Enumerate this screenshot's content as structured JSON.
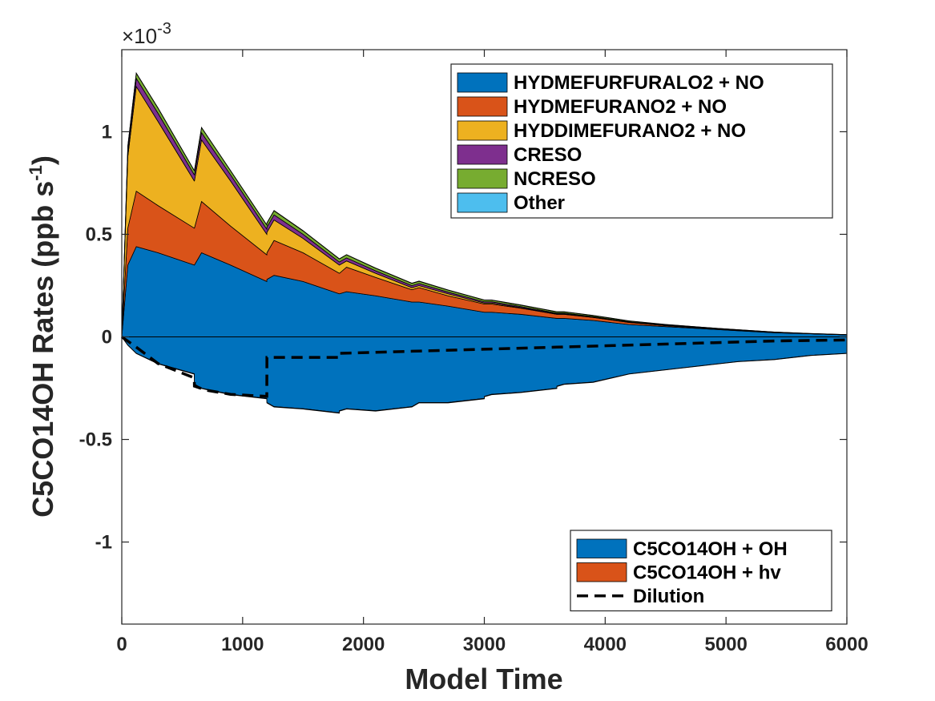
{
  "chart_data": {
    "type": "area",
    "title": "",
    "xlabel": "Model Time",
    "ylabel": "C5CO14OH Rates (ppb s",
    "ylabel_sup": "-1",
    "ylabel_close": ")",
    "multiplier": {
      "times": "×10",
      "exponent": "-3"
    },
    "xlim": [
      0,
      6000
    ],
    "ylim": [
      -1.4,
      1.4
    ],
    "scale": 0.001,
    "x_ticks": [
      0,
      1000,
      2000,
      3000,
      4000,
      5000,
      6000
    ],
    "x_tick_labels": [
      "0",
      "1000",
      "2000",
      "3000",
      "4000",
      "5000",
      "6000"
    ],
    "y_ticks": [
      -1,
      -0.5,
      0,
      0.5,
      1
    ],
    "y_tick_labels": [
      "-1",
      "-0.5",
      "0",
      "0.5",
      "1"
    ],
    "grid": false,
    "legend_placement": [
      "top-right",
      "bottom-right"
    ],
    "x": [
      0,
      50,
      120,
      300,
      600,
      601,
      660,
      900,
      1200,
      1201,
      1260,
      1500,
      1800,
      1801,
      1860,
      2100,
      2400,
      2401,
      2460,
      2700,
      3000,
      3001,
      3060,
      3300,
      3600,
      3601,
      3660,
      3900,
      4200,
      4201,
      4500,
      4800,
      5100,
      5400,
      5700,
      6000
    ],
    "production": [
      {
        "name": "HYDMEFURFURALO2 + NO",
        "color": "#0072BD",
        "values": [
          0,
          0.35,
          0.44,
          0.41,
          0.35,
          0.35,
          0.41,
          0.35,
          0.27,
          0.28,
          0.3,
          0.27,
          0.21,
          0.21,
          0.22,
          0.2,
          0.17,
          0.17,
          0.17,
          0.15,
          0.12,
          0.12,
          0.12,
          0.11,
          0.09,
          0.09,
          0.09,
          0.08,
          0.06,
          0.06,
          0.05,
          0.04,
          0.03,
          0.02,
          0.015,
          0.01
        ]
      },
      {
        "name": "HYDMEFURANO2 + NO",
        "color": "#D95319",
        "values": [
          0,
          0.18,
          0.27,
          0.23,
          0.18,
          0.18,
          0.25,
          0.19,
          0.13,
          0.13,
          0.17,
          0.14,
          0.1,
          0.1,
          0.12,
          0.09,
          0.06,
          0.06,
          0.07,
          0.05,
          0.04,
          0.04,
          0.04,
          0.03,
          0.02,
          0.02,
          0.02,
          0.015,
          0.01,
          0.01,
          0.005,
          0.003,
          0.002,
          0.001,
          0.0005,
          0
        ]
      },
      {
        "name": "HYDDIMEFURANO2 + NO",
        "color": "#EDB120",
        "values": [
          0,
          0.35,
          0.51,
          0.41,
          0.23,
          0.23,
          0.3,
          0.22,
          0.1,
          0.1,
          0.1,
          0.07,
          0.04,
          0.04,
          0.03,
          0.02,
          0.01,
          0.01,
          0.01,
          0.01,
          0.005,
          0.005,
          0.005,
          0.003,
          0.002,
          0.002,
          0.002,
          0.001,
          0.001,
          0.001,
          0,
          0,
          0,
          0,
          0,
          0
        ]
      },
      {
        "name": "CRESO",
        "color": "#7E2F8E",
        "values": [
          0,
          0.03,
          0.04,
          0.04,
          0.03,
          0.03,
          0.035,
          0.03,
          0.025,
          0.025,
          0.025,
          0.02,
          0.015,
          0.015,
          0.015,
          0.012,
          0.01,
          0.01,
          0.01,
          0.008,
          0.006,
          0.006,
          0.006,
          0.005,
          0.004,
          0.004,
          0.004,
          0.003,
          0.002,
          0.002,
          0.002,
          0.001,
          0.001,
          0.001,
          0,
          0
        ]
      },
      {
        "name": "NCRESO",
        "color": "#77AC30",
        "values": [
          0,
          0.02,
          0.025,
          0.025,
          0.02,
          0.02,
          0.025,
          0.02,
          0.02,
          0.02,
          0.02,
          0.017,
          0.015,
          0.015,
          0.015,
          0.013,
          0.011,
          0.011,
          0.011,
          0.01,
          0.008,
          0.008,
          0.008,
          0.007,
          0.006,
          0.006,
          0.006,
          0.005,
          0.004,
          0.004,
          0.003,
          0.003,
          0.002,
          0.002,
          0.001,
          0.001
        ]
      },
      {
        "name": "Other",
        "color": "#4DBEEE",
        "values": [
          0,
          0.001,
          0.001,
          0.001,
          0.001,
          0.001,
          0.001,
          0.001,
          0.001,
          0.001,
          0.001,
          0.001,
          0.001,
          0.001,
          0.001,
          0.001,
          0.001,
          0.001,
          0.001,
          0.001,
          0.001,
          0.001,
          0.001,
          0.001,
          0.001,
          0.001,
          0.001,
          0.001,
          0.001,
          0.001,
          0.001,
          0,
          0,
          0,
          0,
          0
        ]
      }
    ],
    "loss": [
      {
        "name": "C5CO14OH + OH",
        "color": "#0072BD",
        "values": [
          0,
          -0.04,
          -0.08,
          -0.13,
          -0.18,
          -0.23,
          -0.25,
          -0.28,
          -0.3,
          -0.32,
          -0.34,
          -0.35,
          -0.37,
          -0.36,
          -0.35,
          -0.36,
          -0.34,
          -0.34,
          -0.32,
          -0.32,
          -0.3,
          -0.29,
          -0.28,
          -0.27,
          -0.25,
          -0.24,
          -0.23,
          -0.22,
          -0.18,
          -0.18,
          -0.16,
          -0.14,
          -0.12,
          -0.11,
          -0.09,
          -0.08
        ]
      },
      {
        "name": "C5CO14OH + hv",
        "color": "#D95319",
        "values": [
          0,
          -0.001,
          -0.001,
          -0.002,
          -0.002,
          -0.002,
          -0.002,
          -0.002,
          -0.002,
          -0.002,
          -0.002,
          -0.002,
          -0.002,
          -0.002,
          -0.002,
          -0.002,
          -0.002,
          -0.002,
          -0.002,
          -0.002,
          -0.002,
          -0.002,
          -0.002,
          -0.002,
          -0.002,
          -0.002,
          -0.002,
          -0.002,
          -0.001,
          -0.001,
          -0.001,
          -0.001,
          -0.001,
          -0.001,
          -0.001,
          -0.001
        ]
      }
    ],
    "dilution": {
      "name": "Dilution",
      "color": "#000000",
      "x": [
        0,
        120,
        300,
        600,
        601,
        700,
        900,
        1199,
        1200,
        1201,
        1300,
        1800,
        1801,
        2400,
        3000,
        3600,
        4200,
        4800,
        4801,
        5400,
        6000
      ],
      "values": [
        0,
        -0.05,
        -0.13,
        -0.2,
        -0.24,
        -0.26,
        -0.28,
        -0.29,
        -0.29,
        -0.1,
        -0.1,
        -0.1,
        -0.08,
        -0.07,
        -0.06,
        -0.05,
        -0.04,
        -0.03,
        -0.03,
        -0.02,
        -0.015
      ]
    }
  }
}
